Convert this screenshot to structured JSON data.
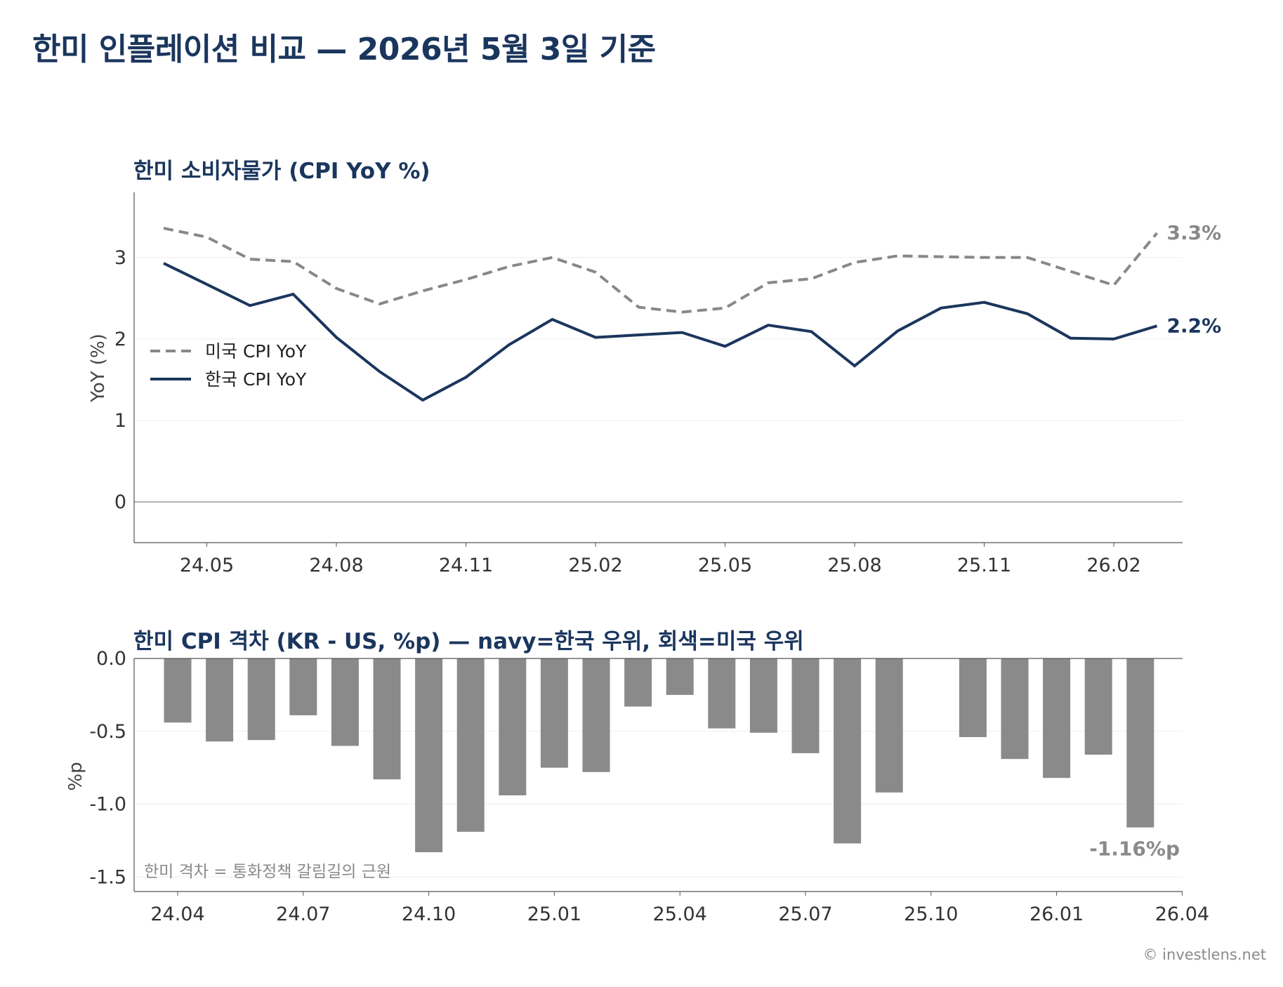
{
  "title": "한미 인플레이션 비교 — 2026년 5월 3일 기준",
  "watermark": "© investlens.net",
  "colors": {
    "korea": "#1b365d",
    "us": "#888888",
    "gap_us": "#8a8a8a",
    "gap_kr": "#1b365d"
  },
  "chart_data": [
    {
      "type": "line",
      "title": "한미 소비자물가 (CPI YoY %)",
      "ylabel": "YoY (%)",
      "ylim": [
        -0.5,
        3.8
      ],
      "yticks": [
        0,
        1,
        2,
        3
      ],
      "grid": true,
      "legend_position": "middle-left",
      "x": [
        "2024-04",
        "2024-05",
        "2024-06",
        "2024-07",
        "2024-08",
        "2024-09",
        "2024-10",
        "2024-11",
        "2024-12",
        "2025-01",
        "2025-02",
        "2025-03",
        "2025-04",
        "2025-05",
        "2025-06",
        "2025-07",
        "2025-08",
        "2025-09",
        "2025-10",
        "2025-11",
        "2025-12",
        "2026-01",
        "2026-02",
        "2026-03"
      ],
      "xticks": [
        "24.05",
        "24.08",
        "24.11",
        "25.02",
        "25.05",
        "25.08",
        "25.11",
        "26.02"
      ],
      "xtick_dates": [
        "2024-05",
        "2024-08",
        "2024-11",
        "2025-02",
        "2025-05",
        "2025-08",
        "2025-11",
        "2026-02"
      ],
      "series": [
        {
          "name": "미국 CPI YoY",
          "style": "dashed",
          "color": "#888888",
          "values": [
            3.36,
            3.25,
            2.98,
            2.95,
            2.62,
            2.43,
            2.59,
            2.73,
            2.89,
            3.0,
            2.82,
            2.39,
            2.33,
            2.38,
            2.69,
            2.74,
            2.94,
            3.02,
            3.01,
            3.0,
            3.0,
            2.83,
            2.66,
            3.3
          ],
          "end_label": "3.3%"
        },
        {
          "name": "한국 CPI YoY",
          "style": "solid",
          "color": "#1b365d",
          "values": [
            2.93,
            2.67,
            2.41,
            2.55,
            2.02,
            1.6,
            1.25,
            1.53,
            1.93,
            2.24,
            2.02,
            2.05,
            2.08,
            1.91,
            2.17,
            2.09,
            1.67,
            2.1,
            2.38,
            2.45,
            2.31,
            2.01,
            2.0,
            2.16
          ],
          "end_label": "2.2%"
        }
      ]
    },
    {
      "type": "bar",
      "title": "한미 CPI 격차 (KR - US, %p) — navy=한국 우위, 회색=미국 우위",
      "ylabel": "%p",
      "ylim": [
        -1.6,
        0.0
      ],
      "yticks": [
        0.0,
        -0.5,
        -1.0,
        -1.5
      ],
      "ytick_labels": [
        "0.0",
        "-0.5",
        "-1.0",
        "-1.5"
      ],
      "x": [
        "2024-04",
        "2024-05",
        "2024-06",
        "2024-07",
        "2024-08",
        "2024-09",
        "2024-10",
        "2024-11",
        "2024-12",
        "2025-01",
        "2025-02",
        "2025-03",
        "2025-04",
        "2025-05",
        "2025-06",
        "2025-07",
        "2025-08",
        "2025-09",
        "2025-10",
        "2025-11",
        "2025-12",
        "2026-01",
        "2026-02",
        "2026-03"
      ],
      "xticks": [
        "24.04",
        "24.07",
        "24.10",
        "25.01",
        "25.04",
        "25.07",
        "25.10",
        "26.01",
        "26.04"
      ],
      "xtick_dates": [
        "2024-04",
        "2024-07",
        "2024-10",
        "2025-01",
        "2025-04",
        "2025-07",
        "2025-10",
        "2026-01",
        "2026-04"
      ],
      "values": [
        -0.44,
        -0.57,
        -0.56,
        -0.39,
        -0.6,
        -0.83,
        -1.33,
        -1.19,
        -0.94,
        -0.75,
        -0.78,
        -0.33,
        -0.25,
        -0.48,
        -0.51,
        -0.65,
        -1.27,
        -0.92,
        null,
        -0.54,
        -0.69,
        -0.82,
        -0.66,
        -1.16
      ],
      "end_label": "-1.16%p",
      "note": "한미 격차 = 통화정책 갈림길의 근원"
    }
  ]
}
